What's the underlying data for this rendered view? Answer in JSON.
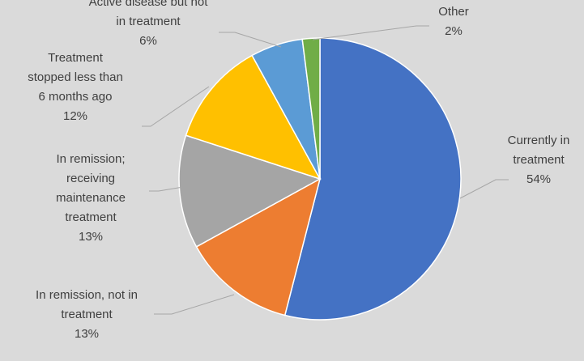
{
  "chart_data": {
    "type": "pie",
    "title": "",
    "categories": [
      "Currently in treatment",
      "In remission, not in treatment",
      "In remission; receiving maintenance treatment",
      "Treatment stopped less than 6 months ago",
      "Active disease but not in treatment",
      "Other"
    ],
    "values": [
      54,
      13,
      13,
      12,
      6,
      2
    ],
    "value_labels": [
      "54%",
      "13%",
      "13%",
      "12%",
      "6%",
      "2%"
    ],
    "colors": [
      "#4472c4",
      "#ed7d31",
      "#a5a5a5",
      "#ffc000",
      "#5b9bd5",
      "#70ad47"
    ],
    "label_lines": [
      [
        "Currently in",
        "treatment"
      ],
      [
        "In remission, not in",
        "treatment"
      ],
      [
        "In remission;",
        "receiving",
        "maintenance",
        "treatment"
      ],
      [
        "Treatment",
        "stopped less than",
        "6 months ago"
      ],
      [
        "Active disease but not",
        "in treatment"
      ],
      [
        "Other"
      ]
    ],
    "legend": "none",
    "start_angle": "12 o'clock, clockwise"
  }
}
